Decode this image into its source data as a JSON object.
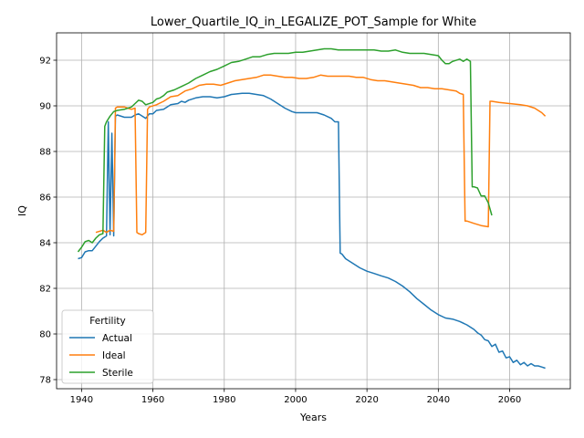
{
  "chart_data": {
    "type": "line",
    "title": "Lower_Quartile_IQ_in_LEGALIZE_POT_Sample for White",
    "xlabel": "Years",
    "ylabel": "IQ",
    "xlim": [
      1933,
      2077
    ],
    "ylim": [
      77.6,
      93.2
    ],
    "xticks": [
      1940,
      1960,
      1980,
      2000,
      2020,
      2040,
      2060
    ],
    "yticks": [
      78,
      80,
      82,
      84,
      86,
      88,
      90,
      92
    ],
    "grid": true,
    "legend": {
      "title": "Fertility",
      "position": "lower-left"
    },
    "series": [
      {
        "name": "Actual",
        "color": "#1f77b4",
        "points": [
          [
            1939,
            83.3
          ],
          [
            1940,
            83.35
          ],
          [
            1941,
            83.6
          ],
          [
            1942,
            83.65
          ],
          [
            1943,
            83.65
          ],
          [
            1944,
            83.85
          ],
          [
            1945,
            84.05
          ],
          [
            1946,
            84.2
          ],
          [
            1947,
            84.3
          ],
          [
            1947.5,
            89.3
          ],
          [
            1948,
            84.35
          ],
          [
            1948.5,
            88.8
          ],
          [
            1949,
            84.3
          ],
          [
            1949.5,
            89.55
          ],
          [
            1950,
            89.6
          ],
          [
            1952,
            89.5
          ],
          [
            1954,
            89.5
          ],
          [
            1955,
            89.6
          ],
          [
            1956,
            89.65
          ],
          [
            1958,
            89.45
          ],
          [
            1959,
            89.65
          ],
          [
            1960,
            89.65
          ],
          [
            1961,
            89.8
          ],
          [
            1963,
            89.85
          ],
          [
            1965,
            90.05
          ],
          [
            1967,
            90.1
          ],
          [
            1968,
            90.2
          ],
          [
            1969,
            90.15
          ],
          [
            1970,
            90.25
          ],
          [
            1972,
            90.35
          ],
          [
            1974,
            90.4
          ],
          [
            1976,
            90.4
          ],
          [
            1978,
            90.35
          ],
          [
            1980,
            90.4
          ],
          [
            1982,
            90.5
          ],
          [
            1985,
            90.55
          ],
          [
            1987,
            90.55
          ],
          [
            1989,
            90.5
          ],
          [
            1991,
            90.45
          ],
          [
            1993,
            90.3
          ],
          [
            1995,
            90.1
          ],
          [
            1997,
            89.9
          ],
          [
            1999,
            89.75
          ],
          [
            2000,
            89.7
          ],
          [
            2002,
            89.7
          ],
          [
            2004,
            89.7
          ],
          [
            2006,
            89.7
          ],
          [
            2008,
            89.6
          ],
          [
            2010,
            89.45
          ],
          [
            2011,
            89.3
          ],
          [
            2012,
            89.3
          ],
          [
            2012.5,
            83.55
          ],
          [
            2013,
            83.5
          ],
          [
            2014,
            83.3
          ],
          [
            2016,
            83.1
          ],
          [
            2018,
            82.9
          ],
          [
            2020,
            82.75
          ],
          [
            2022,
            82.65
          ],
          [
            2024,
            82.55
          ],
          [
            2026,
            82.45
          ],
          [
            2028,
            82.3
          ],
          [
            2030,
            82.1
          ],
          [
            2032,
            81.85
          ],
          [
            2034,
            81.55
          ],
          [
            2036,
            81.3
          ],
          [
            2038,
            81.05
          ],
          [
            2040,
            80.85
          ],
          [
            2042,
            80.7
          ],
          [
            2044,
            80.65
          ],
          [
            2046,
            80.55
          ],
          [
            2048,
            80.4
          ],
          [
            2050,
            80.2
          ],
          [
            2051,
            80.05
          ],
          [
            2052,
            79.95
          ],
          [
            2053,
            79.75
          ],
          [
            2054,
            79.7
          ],
          [
            2055,
            79.45
          ],
          [
            2056,
            79.55
          ],
          [
            2057,
            79.2
          ],
          [
            2058,
            79.25
          ],
          [
            2059,
            78.95
          ],
          [
            2060,
            79.0
          ],
          [
            2061,
            78.75
          ],
          [
            2062,
            78.85
          ],
          [
            2063,
            78.65
          ],
          [
            2064,
            78.75
          ],
          [
            2065,
            78.6
          ],
          [
            2066,
            78.7
          ],
          [
            2067,
            78.6
          ],
          [
            2068,
            78.6
          ],
          [
            2069,
            78.55
          ],
          [
            2070,
            78.5
          ]
        ]
      },
      {
        "name": "Ideal",
        "color": "#ff7f0e",
        "points": [
          [
            1944,
            84.45
          ],
          [
            1946,
            84.55
          ],
          [
            1947,
            84.45
          ],
          [
            1948,
            84.55
          ],
          [
            1949,
            84.5
          ],
          [
            1949.5,
            89.9
          ],
          [
            1950,
            89.95
          ],
          [
            1952,
            89.95
          ],
          [
            1953,
            89.9
          ],
          [
            1954,
            89.85
          ],
          [
            1955,
            89.9
          ],
          [
            1955.5,
            84.45
          ],
          [
            1956,
            84.4
          ],
          [
            1957,
            84.35
          ],
          [
            1958,
            84.45
          ],
          [
            1958.5,
            89.85
          ],
          [
            1959,
            89.95
          ],
          [
            1961,
            90.05
          ],
          [
            1963,
            90.2
          ],
          [
            1965,
            90.4
          ],
          [
            1967,
            90.45
          ],
          [
            1969,
            90.65
          ],
          [
            1971,
            90.75
          ],
          [
            1973,
            90.9
          ],
          [
            1975,
            90.95
          ],
          [
            1977,
            90.95
          ],
          [
            1979,
            90.9
          ],
          [
            1981,
            91.0
          ],
          [
            1983,
            91.1
          ],
          [
            1985,
            91.15
          ],
          [
            1987,
            91.2
          ],
          [
            1989,
            91.25
          ],
          [
            1991,
            91.35
          ],
          [
            1993,
            91.35
          ],
          [
            1995,
            91.3
          ],
          [
            1997,
            91.25
          ],
          [
            1999,
            91.25
          ],
          [
            2001,
            91.2
          ],
          [
            2003,
            91.2
          ],
          [
            2005,
            91.25
          ],
          [
            2007,
            91.35
          ],
          [
            2009,
            91.3
          ],
          [
            2011,
            91.3
          ],
          [
            2013,
            91.3
          ],
          [
            2015,
            91.3
          ],
          [
            2017,
            91.25
          ],
          [
            2019,
            91.25
          ],
          [
            2021,
            91.15
          ],
          [
            2023,
            91.1
          ],
          [
            2025,
            91.1
          ],
          [
            2027,
            91.05
          ],
          [
            2029,
            91.0
          ],
          [
            2031,
            90.95
          ],
          [
            2033,
            90.9
          ],
          [
            2035,
            90.8
          ],
          [
            2037,
            90.8
          ],
          [
            2039,
            90.75
          ],
          [
            2041,
            90.75
          ],
          [
            2043,
            90.7
          ],
          [
            2045,
            90.65
          ],
          [
            2046,
            90.55
          ],
          [
            2047,
            90.5
          ],
          [
            2047.5,
            84.95
          ],
          [
            2048,
            84.95
          ],
          [
            2050,
            84.85
          ],
          [
            2052,
            84.75
          ],
          [
            2054,
            84.7
          ],
          [
            2054.5,
            90.2
          ],
          [
            2055,
            90.2
          ],
          [
            2057,
            90.15
          ],
          [
            2060,
            90.1
          ],
          [
            2063,
            90.05
          ],
          [
            2065,
            90.0
          ],
          [
            2067,
            89.9
          ],
          [
            2069,
            89.7
          ],
          [
            2070,
            89.55
          ]
        ]
      },
      {
        "name": "Sterile",
        "color": "#2ca02c",
        "points": [
          [
            1939,
            83.6
          ],
          [
            1940,
            83.8
          ],
          [
            1941,
            84.05
          ],
          [
            1942,
            84.1
          ],
          [
            1943,
            84.0
          ],
          [
            1944,
            84.2
          ],
          [
            1945,
            84.35
          ],
          [
            1946,
            84.4
          ],
          [
            1946.5,
            89.1
          ],
          [
            1947,
            89.3
          ],
          [
            1948,
            89.55
          ],
          [
            1949,
            89.75
          ],
          [
            1950,
            89.8
          ],
          [
            1952,
            89.85
          ],
          [
            1954,
            89.95
          ],
          [
            1955,
            90.1
          ],
          [
            1956,
            90.25
          ],
          [
            1957,
            90.2
          ],
          [
            1958,
            90.05
          ],
          [
            1960,
            90.15
          ],
          [
            1961,
            90.3
          ],
          [
            1962,
            90.35
          ],
          [
            1963,
            90.45
          ],
          [
            1964,
            90.6
          ],
          [
            1966,
            90.7
          ],
          [
            1968,
            90.85
          ],
          [
            1970,
            91.0
          ],
          [
            1972,
            91.2
          ],
          [
            1974,
            91.35
          ],
          [
            1976,
            91.5
          ],
          [
            1978,
            91.6
          ],
          [
            1980,
            91.75
          ],
          [
            1982,
            91.9
          ],
          [
            1984,
            91.95
          ],
          [
            1986,
            92.05
          ],
          [
            1988,
            92.15
          ],
          [
            1990,
            92.15
          ],
          [
            1992,
            92.25
          ],
          [
            1994,
            92.3
          ],
          [
            1996,
            92.3
          ],
          [
            1998,
            92.3
          ],
          [
            2000,
            92.35
          ],
          [
            2002,
            92.35
          ],
          [
            2004,
            92.4
          ],
          [
            2006,
            92.45
          ],
          [
            2008,
            92.5
          ],
          [
            2010,
            92.5
          ],
          [
            2012,
            92.45
          ],
          [
            2014,
            92.45
          ],
          [
            2016,
            92.45
          ],
          [
            2018,
            92.45
          ],
          [
            2020,
            92.45
          ],
          [
            2022,
            92.45
          ],
          [
            2024,
            92.4
          ],
          [
            2026,
            92.4
          ],
          [
            2028,
            92.45
          ],
          [
            2030,
            92.35
          ],
          [
            2032,
            92.3
          ],
          [
            2034,
            92.3
          ],
          [
            2036,
            92.3
          ],
          [
            2038,
            92.25
          ],
          [
            2040,
            92.2
          ],
          [
            2041,
            92.0
          ],
          [
            2042,
            91.85
          ],
          [
            2043,
            91.85
          ],
          [
            2044,
            91.95
          ],
          [
            2046,
            92.05
          ],
          [
            2047,
            91.95
          ],
          [
            2048,
            92.05
          ],
          [
            2049,
            91.95
          ],
          [
            2049.5,
            86.45
          ],
          [
            2050,
            86.45
          ],
          [
            2051,
            86.4
          ],
          [
            2052,
            86.05
          ],
          [
            2053,
            86.05
          ],
          [
            2054,
            85.75
          ],
          [
            2055,
            85.2
          ]
        ]
      }
    ]
  }
}
